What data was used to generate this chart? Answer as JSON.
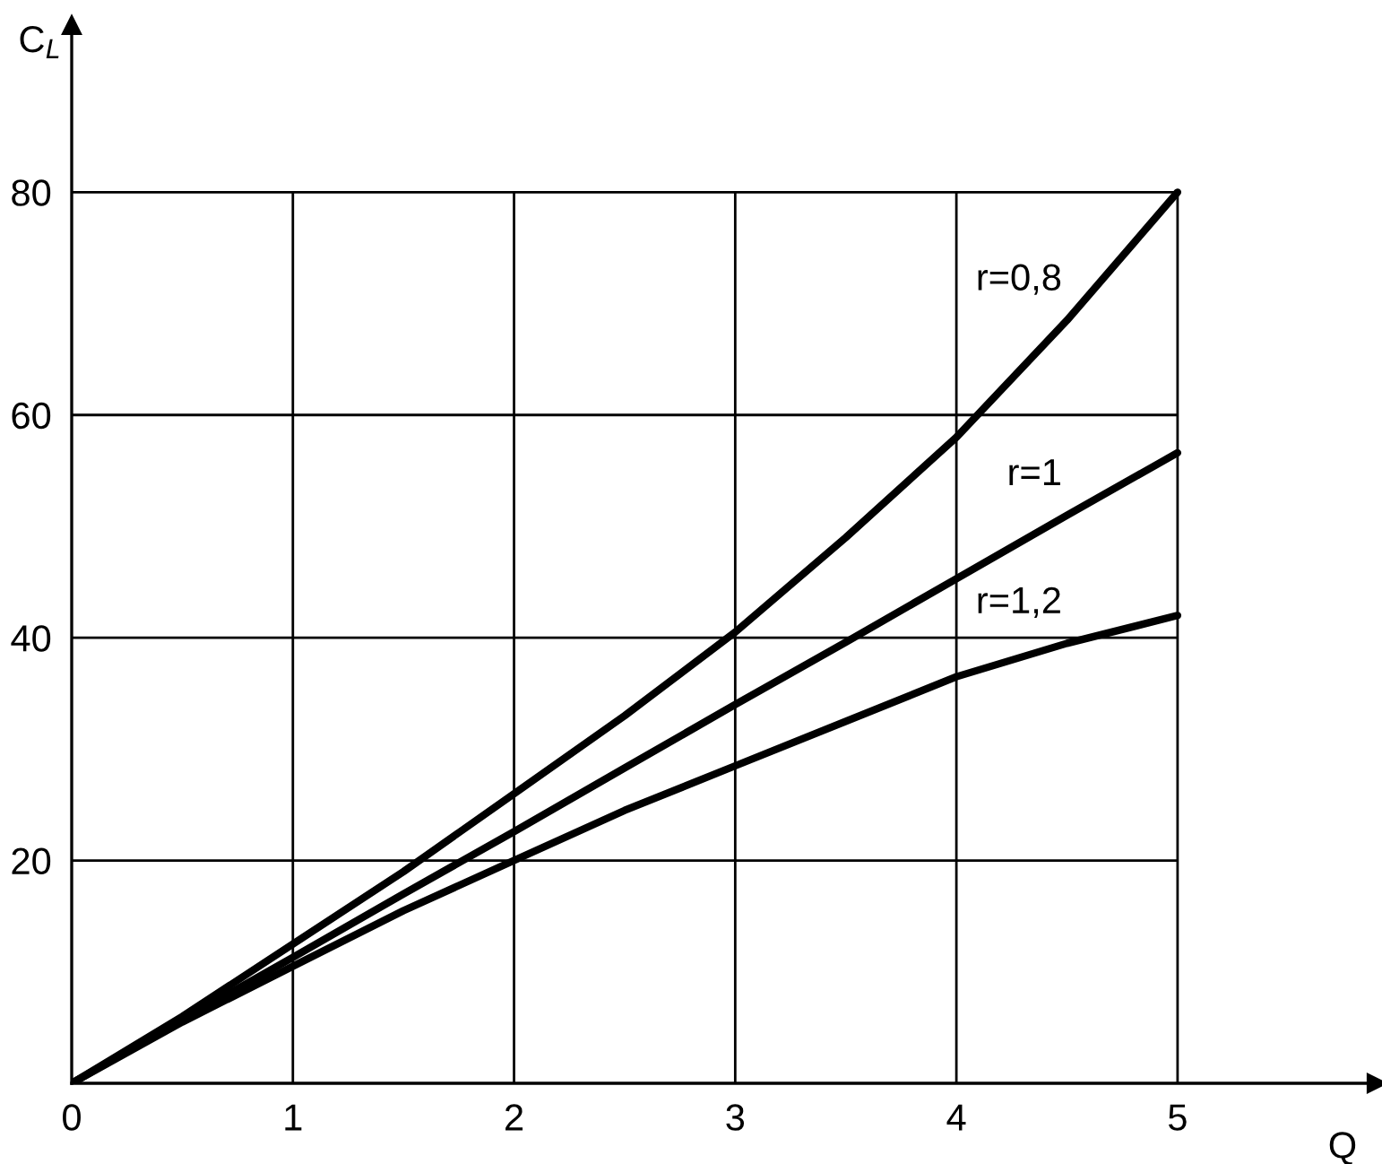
{
  "chart_data": {
    "type": "line",
    "xlabel": "Q",
    "ylabel": "C$_{L}$",
    "x": [
      0,
      0.5,
      1,
      1.5,
      2,
      2.5,
      3,
      3.5,
      4,
      4.5,
      5
    ],
    "series": [
      {
        "name": "r=0,8",
        "color": "#000000",
        "values": [
          0,
          6,
          12.5,
          19,
          26,
          33,
          40.5,
          49,
          58,
          68.5,
          80
        ]
      },
      {
        "name": "r=1",
        "color": "#000000",
        "values": [
          0,
          5.7,
          11.3,
          17,
          22.6,
          28.3,
          34,
          39.6,
          45.3,
          51,
          56.6
        ]
      },
      {
        "name": "r=1,2",
        "color": "#000000",
        "values": [
          0,
          5.5,
          10.5,
          15.5,
          20,
          24.5,
          28.5,
          32.5,
          36.5,
          39.5,
          42
        ]
      }
    ],
    "xlim": [
      0,
      5.9
    ],
    "ylim": [
      0,
      95
    ],
    "xticks": [
      0,
      1,
      2,
      3,
      4,
      5
    ],
    "yticks": [
      20,
      40,
      60,
      80
    ],
    "grid": true,
    "legend": false,
    "marker": "none",
    "line_style": "solid"
  }
}
